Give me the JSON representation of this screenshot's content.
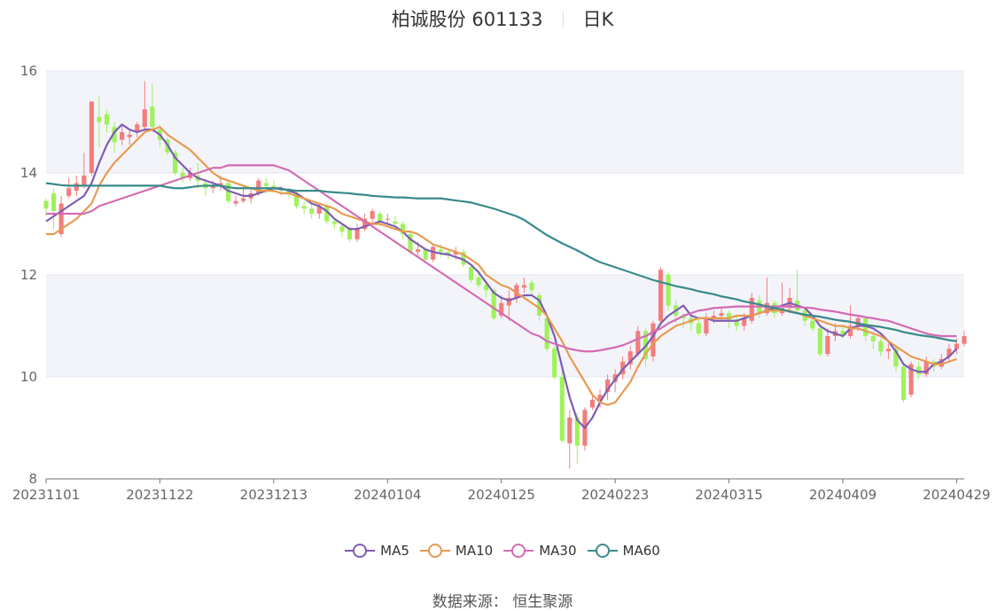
{
  "title": {
    "name": "柏诚股份 601133",
    "period": "日K"
  },
  "source": "数据来源： 恒生聚源",
  "colors": {
    "up": "#f27d7d",
    "down": "#9ef25a",
    "band": "#f3f4fa",
    "axis": "#6e7079",
    "grid": "#e0e6f1"
  },
  "chart_data": {
    "type": "candlestick",
    "ylim": [
      8,
      16
    ],
    "yticks": [
      "8",
      "10",
      "12",
      "14",
      "16"
    ],
    "xticks": [
      "20231101",
      "20231122",
      "20231213",
      "20240104",
      "20240125",
      "20240223",
      "20240315",
      "20240409",
      "20240429"
    ],
    "xtick_index": [
      0,
      15,
      30,
      45,
      60,
      75,
      90,
      105,
      120
    ],
    "candles": [
      [
        13.45,
        13.3,
        13.5,
        13.15
      ],
      [
        13.6,
        13.25,
        13.7,
        12.9
      ],
      [
        12.8,
        13.4,
        13.55,
        12.75
      ],
      [
        13.55,
        13.7,
        13.9,
        13.5
      ],
      [
        13.65,
        13.8,
        13.95,
        13.55
      ],
      [
        13.75,
        13.95,
        14.4,
        13.7
      ],
      [
        14.0,
        15.4,
        15.4,
        13.95
      ],
      [
        15.1,
        15.0,
        15.5,
        14.5
      ],
      [
        15.15,
        14.95,
        15.25,
        14.8
      ],
      [
        14.9,
        14.6,
        15.0,
        14.4
      ],
      [
        14.65,
        14.8,
        14.95,
        14.55
      ],
      [
        14.7,
        14.75,
        14.85,
        14.55
      ],
      [
        14.8,
        14.95,
        15.0,
        14.7
      ],
      [
        14.9,
        15.25,
        15.8,
        14.85
      ],
      [
        15.3,
        14.9,
        15.75,
        14.8
      ],
      [
        14.85,
        14.65,
        14.95,
        14.5
      ],
      [
        14.65,
        14.4,
        14.7,
        14.35
      ],
      [
        14.4,
        14.0,
        14.45,
        13.95
      ],
      [
        14.0,
        13.9,
        14.1,
        13.8
      ],
      [
        13.9,
        14.0,
        14.1,
        13.85
      ],
      [
        13.95,
        13.85,
        14.2,
        13.7
      ],
      [
        13.8,
        13.7,
        13.9,
        13.55
      ],
      [
        13.7,
        13.75,
        13.85,
        13.6
      ],
      [
        13.75,
        13.8,
        13.95,
        13.65
      ],
      [
        13.8,
        13.45,
        13.85,
        13.4
      ],
      [
        13.4,
        13.45,
        13.55,
        13.35
      ],
      [
        13.45,
        13.5,
        13.75,
        13.4
      ],
      [
        13.5,
        13.6,
        13.7,
        13.4
      ],
      [
        13.6,
        13.85,
        13.9,
        13.55
      ],
      [
        13.8,
        13.75,
        13.9,
        13.6
      ],
      [
        13.75,
        13.7,
        13.85,
        13.6
      ],
      [
        13.7,
        13.65,
        13.75,
        13.55
      ],
      [
        13.65,
        13.6,
        13.7,
        13.5
      ],
      [
        13.6,
        13.35,
        13.65,
        13.3
      ],
      [
        13.35,
        13.3,
        13.45,
        13.2
      ],
      [
        13.3,
        13.2,
        13.4,
        13.1
      ],
      [
        13.2,
        13.35,
        13.4,
        13.1
      ],
      [
        13.35,
        13.05,
        13.4,
        13.0
      ],
      [
        13.05,
        13.0,
        13.1,
        12.9
      ],
      [
        12.95,
        12.85,
        13.0,
        12.75
      ],
      [
        12.9,
        12.7,
        12.95,
        12.65
      ],
      [
        12.7,
        12.9,
        13.0,
        12.65
      ],
      [
        12.9,
        13.1,
        13.2,
        12.85
      ],
      [
        13.1,
        13.25,
        13.3,
        13.0
      ],
      [
        13.2,
        13.05,
        13.25,
        12.95
      ],
      [
        13.1,
        13.1,
        13.2,
        13.0
      ],
      [
        13.05,
        13.0,
        13.15,
        12.9
      ],
      [
        13.0,
        12.8,
        13.05,
        12.7
      ],
      [
        12.8,
        12.45,
        12.85,
        12.4
      ],
      [
        12.45,
        12.5,
        12.65,
        12.35
      ],
      [
        12.5,
        12.3,
        12.55,
        12.25
      ],
      [
        12.3,
        12.55,
        12.6,
        12.25
      ],
      [
        12.5,
        12.45,
        12.6,
        12.35
      ],
      [
        12.45,
        12.4,
        12.5,
        12.3
      ],
      [
        12.4,
        12.45,
        12.55,
        12.3
      ],
      [
        12.45,
        12.2,
        12.5,
        12.15
      ],
      [
        12.15,
        11.9,
        12.2,
        11.85
      ],
      [
        11.95,
        11.8,
        12.1,
        11.75
      ],
      [
        11.8,
        11.7,
        11.85,
        11.55
      ],
      [
        11.7,
        11.15,
        11.75,
        11.1
      ],
      [
        11.2,
        11.45,
        11.6,
        11.15
      ],
      [
        11.4,
        11.55,
        11.7,
        11.1
      ],
      [
        11.55,
        11.8,
        11.85,
        11.45
      ],
      [
        11.75,
        11.8,
        11.95,
        11.65
      ],
      [
        11.85,
        11.7,
        11.9,
        11.6
      ],
      [
        11.6,
        11.2,
        11.65,
        11.1
      ],
      [
        11.15,
        10.55,
        11.2,
        10.5
      ],
      [
        10.55,
        10.0,
        10.6,
        9.95
      ],
      [
        10.0,
        8.75,
        10.15,
        8.7
      ],
      [
        8.7,
        9.2,
        9.35,
        8.2
      ],
      [
        9.2,
        8.65,
        9.3,
        8.3
      ],
      [
        8.65,
        9.35,
        9.4,
        8.55
      ],
      [
        9.4,
        9.55,
        9.65,
        9.35
      ],
      [
        9.55,
        9.65,
        9.75,
        9.4
      ],
      [
        9.7,
        9.95,
        10.05,
        9.55
      ],
      [
        9.9,
        10.05,
        10.15,
        9.7
      ],
      [
        10.05,
        10.3,
        10.4,
        9.95
      ],
      [
        10.25,
        10.5,
        10.6,
        10.15
      ],
      [
        10.45,
        10.9,
        11.0,
        10.4
      ],
      [
        10.9,
        10.35,
        10.95,
        10.2
      ],
      [
        10.4,
        11.05,
        11.1,
        10.3
      ],
      [
        11.1,
        12.1,
        12.15,
        11.0
      ],
      [
        12.0,
        11.4,
        12.05,
        11.3
      ],
      [
        11.4,
        11.2,
        11.5,
        11.05
      ],
      [
        11.2,
        11.15,
        11.25,
        10.95
      ],
      [
        11.15,
        11.05,
        11.25,
        10.9
      ],
      [
        11.05,
        10.85,
        11.15,
        10.8
      ],
      [
        10.85,
        11.15,
        11.25,
        10.8
      ],
      [
        11.15,
        11.2,
        11.3,
        11.05
      ],
      [
        11.2,
        11.25,
        11.35,
        11.1
      ],
      [
        11.25,
        11.1,
        11.3,
        10.95
      ],
      [
        11.1,
        11.0,
        11.2,
        10.9
      ],
      [
        11.0,
        11.15,
        11.25,
        10.9
      ],
      [
        11.1,
        11.55,
        11.65,
        11.05
      ],
      [
        11.5,
        11.25,
        11.6,
        11.15
      ],
      [
        11.25,
        11.45,
        11.95,
        11.2
      ],
      [
        11.45,
        11.25,
        11.5,
        11.15
      ],
      [
        11.25,
        11.35,
        11.85,
        11.2
      ],
      [
        11.35,
        11.55,
        11.75,
        11.25
      ],
      [
        11.5,
        11.3,
        12.1,
        11.25
      ],
      [
        11.3,
        11.1,
        11.35,
        11.0
      ],
      [
        11.1,
        10.95,
        11.2,
        10.9
      ],
      [
        10.95,
        10.45,
        11.0,
        10.4
      ],
      [
        10.45,
        10.8,
        10.95,
        10.4
      ],
      [
        10.8,
        10.9,
        11.05,
        10.7
      ],
      [
        10.9,
        10.8,
        11.0,
        10.75
      ],
      [
        10.8,
        11.0,
        11.4,
        10.75
      ],
      [
        11.0,
        11.15,
        11.2,
        10.9
      ],
      [
        11.15,
        10.8,
        11.2,
        10.7
      ],
      [
        10.8,
        10.7,
        10.9,
        10.55
      ],
      [
        10.7,
        10.5,
        10.75,
        10.4
      ],
      [
        10.5,
        10.55,
        10.65,
        10.35
      ],
      [
        10.55,
        10.2,
        10.6,
        10.1
      ],
      [
        10.2,
        9.55,
        10.25,
        9.5
      ],
      [
        9.65,
        10.25,
        10.3,
        9.6
      ],
      [
        10.2,
        10.05,
        10.3,
        9.95
      ],
      [
        10.05,
        10.3,
        10.4,
        10.0
      ],
      [
        10.3,
        10.2,
        10.35,
        10.1
      ],
      [
        10.2,
        10.35,
        10.45,
        10.15
      ],
      [
        10.4,
        10.55,
        10.65,
        10.3
      ],
      [
        10.55,
        10.65,
        10.75,
        10.45
      ],
      [
        10.65,
        10.8,
        10.9,
        10.6
      ]
    ],
    "series": [
      {
        "name": "MA5",
        "color": "#7d5cb3",
        "values": [
          13.05,
          13.15,
          13.25,
          13.35,
          13.45,
          13.55,
          13.8,
          14.2,
          14.55,
          14.8,
          14.95,
          14.85,
          14.8,
          14.85,
          14.85,
          14.75,
          14.55,
          14.3,
          14.15,
          14.0,
          13.9,
          13.85,
          13.8,
          13.75,
          13.65,
          13.6,
          13.55,
          13.55,
          13.6,
          13.65,
          13.7,
          13.7,
          13.65,
          13.6,
          13.5,
          13.4,
          13.35,
          13.25,
          13.1,
          13.0,
          12.9,
          12.9,
          12.95,
          13.0,
          13.05,
          13.0,
          12.95,
          12.85,
          12.7,
          12.6,
          12.5,
          12.45,
          12.42,
          12.4,
          12.35,
          12.3,
          12.2,
          12.05,
          11.85,
          11.65,
          11.55,
          11.5,
          11.55,
          11.6,
          11.6,
          11.5,
          11.2,
          10.8,
          10.2,
          9.6,
          9.15,
          9.0,
          9.2,
          9.5,
          9.75,
          9.95,
          10.15,
          10.3,
          10.45,
          10.6,
          10.8,
          11.05,
          11.2,
          11.3,
          11.4,
          11.2,
          11.15,
          11.15,
          11.1,
          11.1,
          11.1,
          11.1,
          11.15,
          11.2,
          11.25,
          11.3,
          11.35,
          11.4,
          11.45,
          11.4,
          11.35,
          11.2,
          11.0,
          10.9,
          10.85,
          10.8,
          10.95,
          11.0,
          11.0,
          10.95,
          10.85,
          10.7,
          10.5,
          10.25,
          10.15,
          10.1,
          10.1,
          10.25,
          10.3,
          10.4,
          10.55
        ]
      },
      {
        "name": "MA10",
        "color": "#e8994f",
        "values": [
          12.8,
          12.8,
          12.9,
          13.0,
          13.1,
          13.25,
          13.4,
          13.75,
          14.0,
          14.2,
          14.35,
          14.5,
          14.65,
          14.8,
          14.85,
          14.9,
          14.75,
          14.65,
          14.55,
          14.45,
          14.3,
          14.15,
          14.0,
          13.9,
          13.85,
          13.8,
          13.75,
          13.7,
          13.65,
          13.65,
          13.65,
          13.6,
          13.6,
          13.55,
          13.5,
          13.45,
          13.4,
          13.35,
          13.3,
          13.2,
          13.15,
          13.1,
          13.05,
          13.0,
          13.0,
          12.95,
          12.9,
          12.85,
          12.85,
          12.8,
          12.7,
          12.6,
          12.55,
          12.5,
          12.45,
          12.4,
          12.3,
          12.2,
          12.0,
          11.9,
          11.8,
          11.75,
          11.65,
          11.55,
          11.45,
          11.35,
          11.2,
          10.95,
          10.7,
          10.4,
          10.15,
          9.9,
          9.65,
          9.5,
          9.45,
          9.5,
          9.7,
          9.9,
          10.2,
          10.45,
          10.65,
          10.8,
          10.9,
          11.0,
          11.05,
          11.1,
          11.15,
          11.15,
          11.15,
          11.15,
          11.15,
          11.2,
          11.2,
          11.2,
          11.25,
          11.3,
          11.3,
          11.3,
          11.3,
          11.25,
          11.2,
          11.15,
          11.1,
          11.05,
          11.0,
          11.0,
          10.95,
          10.95,
          10.9,
          10.85,
          10.8,
          10.7,
          10.6,
          10.5,
          10.4,
          10.35,
          10.3,
          10.25,
          10.25,
          10.3,
          10.35
        ]
      },
      {
        "name": "MA30",
        "color": "#d36bb2",
        "values": [
          13.2,
          13.2,
          13.2,
          13.2,
          13.2,
          13.2,
          13.25,
          13.35,
          13.4,
          13.45,
          13.5,
          13.55,
          13.6,
          13.65,
          13.7,
          13.75,
          13.8,
          13.85,
          13.9,
          13.95,
          14.0,
          14.05,
          14.1,
          14.1,
          14.15,
          14.15,
          14.15,
          14.15,
          14.15,
          14.15,
          14.15,
          14.1,
          14.05,
          13.95,
          13.85,
          13.75,
          13.65,
          13.55,
          13.45,
          13.35,
          13.25,
          13.15,
          13.05,
          12.95,
          12.85,
          12.75,
          12.65,
          12.55,
          12.45,
          12.35,
          12.25,
          12.15,
          12.05,
          11.95,
          11.85,
          11.75,
          11.65,
          11.55,
          11.45,
          11.35,
          11.25,
          11.15,
          11.05,
          10.95,
          10.85,
          10.8,
          10.7,
          10.65,
          10.6,
          10.55,
          10.52,
          10.5,
          10.5,
          10.52,
          10.55,
          10.58,
          10.62,
          10.68,
          10.75,
          10.8,
          10.88,
          10.95,
          11.05,
          11.12,
          11.2,
          11.25,
          11.3,
          11.32,
          11.35,
          11.36,
          11.37,
          11.38,
          11.38,
          11.38,
          11.38,
          11.38,
          11.38,
          11.38,
          11.38,
          11.37,
          11.36,
          11.35,
          11.32,
          11.3,
          11.28,
          11.25,
          11.22,
          11.2,
          11.17,
          11.15,
          11.12,
          11.1,
          11.05,
          11.0,
          10.95,
          10.9,
          10.85,
          10.82,
          10.8,
          10.8,
          10.8
        ]
      },
      {
        "name": "MA60",
        "color": "#3a8a8a",
        "values": [
          13.8,
          13.78,
          13.76,
          13.75,
          13.75,
          13.75,
          13.75,
          13.75,
          13.75,
          13.75,
          13.75,
          13.75,
          13.75,
          13.75,
          13.75,
          13.75,
          13.72,
          13.7,
          13.7,
          13.72,
          13.74,
          13.75,
          13.75,
          13.75,
          13.72,
          13.7,
          13.7,
          13.7,
          13.7,
          13.7,
          13.7,
          13.68,
          13.67,
          13.65,
          13.65,
          13.65,
          13.65,
          13.63,
          13.62,
          13.61,
          13.6,
          13.58,
          13.57,
          13.55,
          13.54,
          13.53,
          13.52,
          13.52,
          13.51,
          13.5,
          13.5,
          13.5,
          13.5,
          13.48,
          13.46,
          13.44,
          13.42,
          13.38,
          13.34,
          13.3,
          13.25,
          13.2,
          13.15,
          13.08,
          12.98,
          12.88,
          12.78,
          12.7,
          12.62,
          12.55,
          12.48,
          12.4,
          12.32,
          12.25,
          12.2,
          12.15,
          12.1,
          12.05,
          12.0,
          11.95,
          11.9,
          11.86,
          11.82,
          11.78,
          11.75,
          11.72,
          11.68,
          11.65,
          11.62,
          11.58,
          11.55,
          11.52,
          11.48,
          11.45,
          11.42,
          11.38,
          11.35,
          11.32,
          11.28,
          11.25,
          11.22,
          11.2,
          11.18,
          11.15,
          11.12,
          11.1,
          11.08,
          11.05,
          11.02,
          11.0,
          10.98,
          10.95,
          10.92,
          10.88,
          10.85,
          10.82,
          10.8,
          10.78,
          10.75,
          10.72,
          10.7
        ]
      }
    ],
    "legend": {
      "position": "bottom-center",
      "labels": [
        "MA5",
        "MA10",
        "MA30",
        "MA60"
      ]
    }
  }
}
